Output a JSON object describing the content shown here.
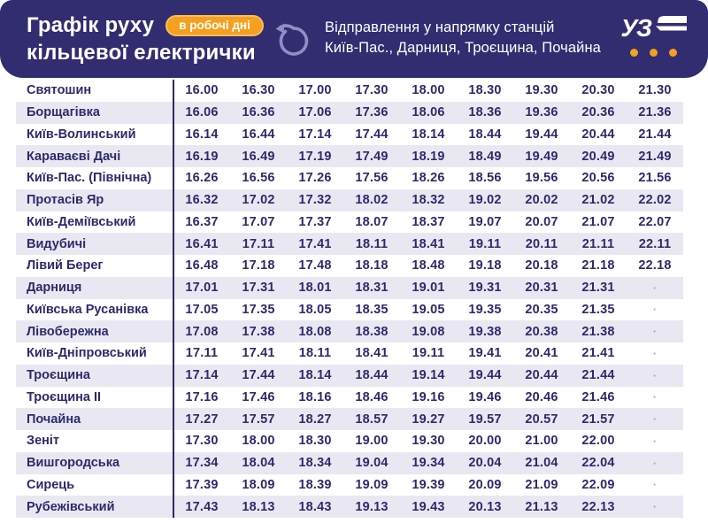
{
  "header": {
    "title_line1": "Графік руху",
    "title_line2": "кільцевої електрички",
    "badge": "в робочі дні",
    "direction_line1": "Відправлення у напрямку станцій",
    "direction_line2": "Київ-Пас., Дарниця, Троєщина, Почайна",
    "logo_text": "УЗ",
    "icons": {
      "circular_arrow": "counterclockwise-loop-arrow",
      "train_glyph": "uz-stylized-train"
    }
  },
  "colors": {
    "header_bg": "#312d70",
    "accent_orange": "#f5a01e",
    "badge_border": "#f9bd5c",
    "row_alt": "#e9e8f2",
    "text_navy": "#2d2a6b",
    "arrow_icon": "#918ec7",
    "no_service_dot": "#a8a6bd"
  },
  "table": {
    "no_service_mark": "·",
    "rows": [
      {
        "station": "Святошин",
        "times": [
          "16.00",
          "16.30",
          "17.00",
          "17.30",
          "18.00",
          "18.30",
          "19.30",
          "20.30",
          "21.30"
        ]
      },
      {
        "station": "Борщагівка",
        "times": [
          "16.06",
          "16.36",
          "17.06",
          "17.36",
          "18.06",
          "18.36",
          "19.36",
          "20.36",
          "21.36"
        ]
      },
      {
        "station": "Київ-Волинський",
        "times": [
          "16.14",
          "16.44",
          "17.14",
          "17.44",
          "18.14",
          "18.44",
          "19.44",
          "20.44",
          "21.44"
        ]
      },
      {
        "station": "Караваєві Дачі",
        "times": [
          "16.19",
          "16.49",
          "17.19",
          "17.49",
          "18.19",
          "18.49",
          "19.49",
          "20.49",
          "21.49"
        ]
      },
      {
        "station": "Київ-Пас. (Північна)",
        "times": [
          "16.26",
          "16.56",
          "17.26",
          "17.56",
          "18.26",
          "18.56",
          "19.56",
          "20.56",
          "21.56"
        ]
      },
      {
        "station": "Протасів Яр",
        "times": [
          "16.32",
          "17.02",
          "17.32",
          "18.02",
          "18.32",
          "19.02",
          "20.02",
          "21.02",
          "22.02"
        ]
      },
      {
        "station": "Київ-Деміївський",
        "times": [
          "16.37",
          "17.07",
          "17.37",
          "18.07",
          "18.37",
          "19.07",
          "20.07",
          "21.07",
          "22.07"
        ]
      },
      {
        "station": "Видубичі",
        "times": [
          "16.41",
          "17.11",
          "17.41",
          "18.11",
          "18.41",
          "19.11",
          "20.11",
          "21.11",
          "22.11"
        ]
      },
      {
        "station": "Лівий Берег",
        "times": [
          "16.48",
          "17.18",
          "17.48",
          "18.18",
          "18.48",
          "19.18",
          "20.18",
          "21.18",
          "22.18"
        ]
      },
      {
        "station": "Дарниця",
        "times": [
          "17.01",
          "17.31",
          "18.01",
          "18.31",
          "19.01",
          "19.31",
          "20.31",
          "21.31",
          "·"
        ]
      },
      {
        "station": "Київська Русанівка",
        "times": [
          "17.05",
          "17.35",
          "18.05",
          "18.35",
          "19.05",
          "19.35",
          "20.35",
          "21.35",
          "·"
        ]
      },
      {
        "station": "Лівобережна",
        "times": [
          "17.08",
          "17.38",
          "18.08",
          "18.38",
          "19.08",
          "19.38",
          "20.38",
          "21.38",
          "·"
        ]
      },
      {
        "station": "Київ-Дніпровський",
        "times": [
          "17.11",
          "17.41",
          "18.11",
          "18.41",
          "19.11",
          "19.41",
          "20.41",
          "21.41",
          "·"
        ]
      },
      {
        "station": "Троєщина",
        "times": [
          "17.14",
          "17.44",
          "18.14",
          "18.44",
          "19.14",
          "19.44",
          "20.44",
          "21.44",
          "·"
        ]
      },
      {
        "station": "Троєщина II",
        "times": [
          "17.16",
          "17.46",
          "18.16",
          "18.46",
          "19.16",
          "19.46",
          "20.46",
          "21.46",
          "·"
        ]
      },
      {
        "station": "Почайна",
        "times": [
          "17.27",
          "17.57",
          "18.27",
          "18.57",
          "19.27",
          "19.57",
          "20.57",
          "21.57",
          "·"
        ]
      },
      {
        "station": "Зеніт",
        "times": [
          "17.30",
          "18.00",
          "18.30",
          "19.00",
          "19.30",
          "20.00",
          "21.00",
          "22.00",
          "·"
        ]
      },
      {
        "station": "Вишгородська",
        "times": [
          "17.34",
          "18.04",
          "18.34",
          "19.04",
          "19.34",
          "20.04",
          "21.04",
          "22.04",
          "·"
        ]
      },
      {
        "station": "Сирець",
        "times": [
          "17.39",
          "18.09",
          "18.39",
          "19.09",
          "19.39",
          "20.09",
          "21.09",
          "22.09",
          "·"
        ]
      },
      {
        "station": "Рубежівський",
        "times": [
          "17.43",
          "18.13",
          "18.43",
          "19.13",
          "19.43",
          "20.13",
          "21.13",
          "22.13",
          "·"
        ]
      }
    ]
  }
}
